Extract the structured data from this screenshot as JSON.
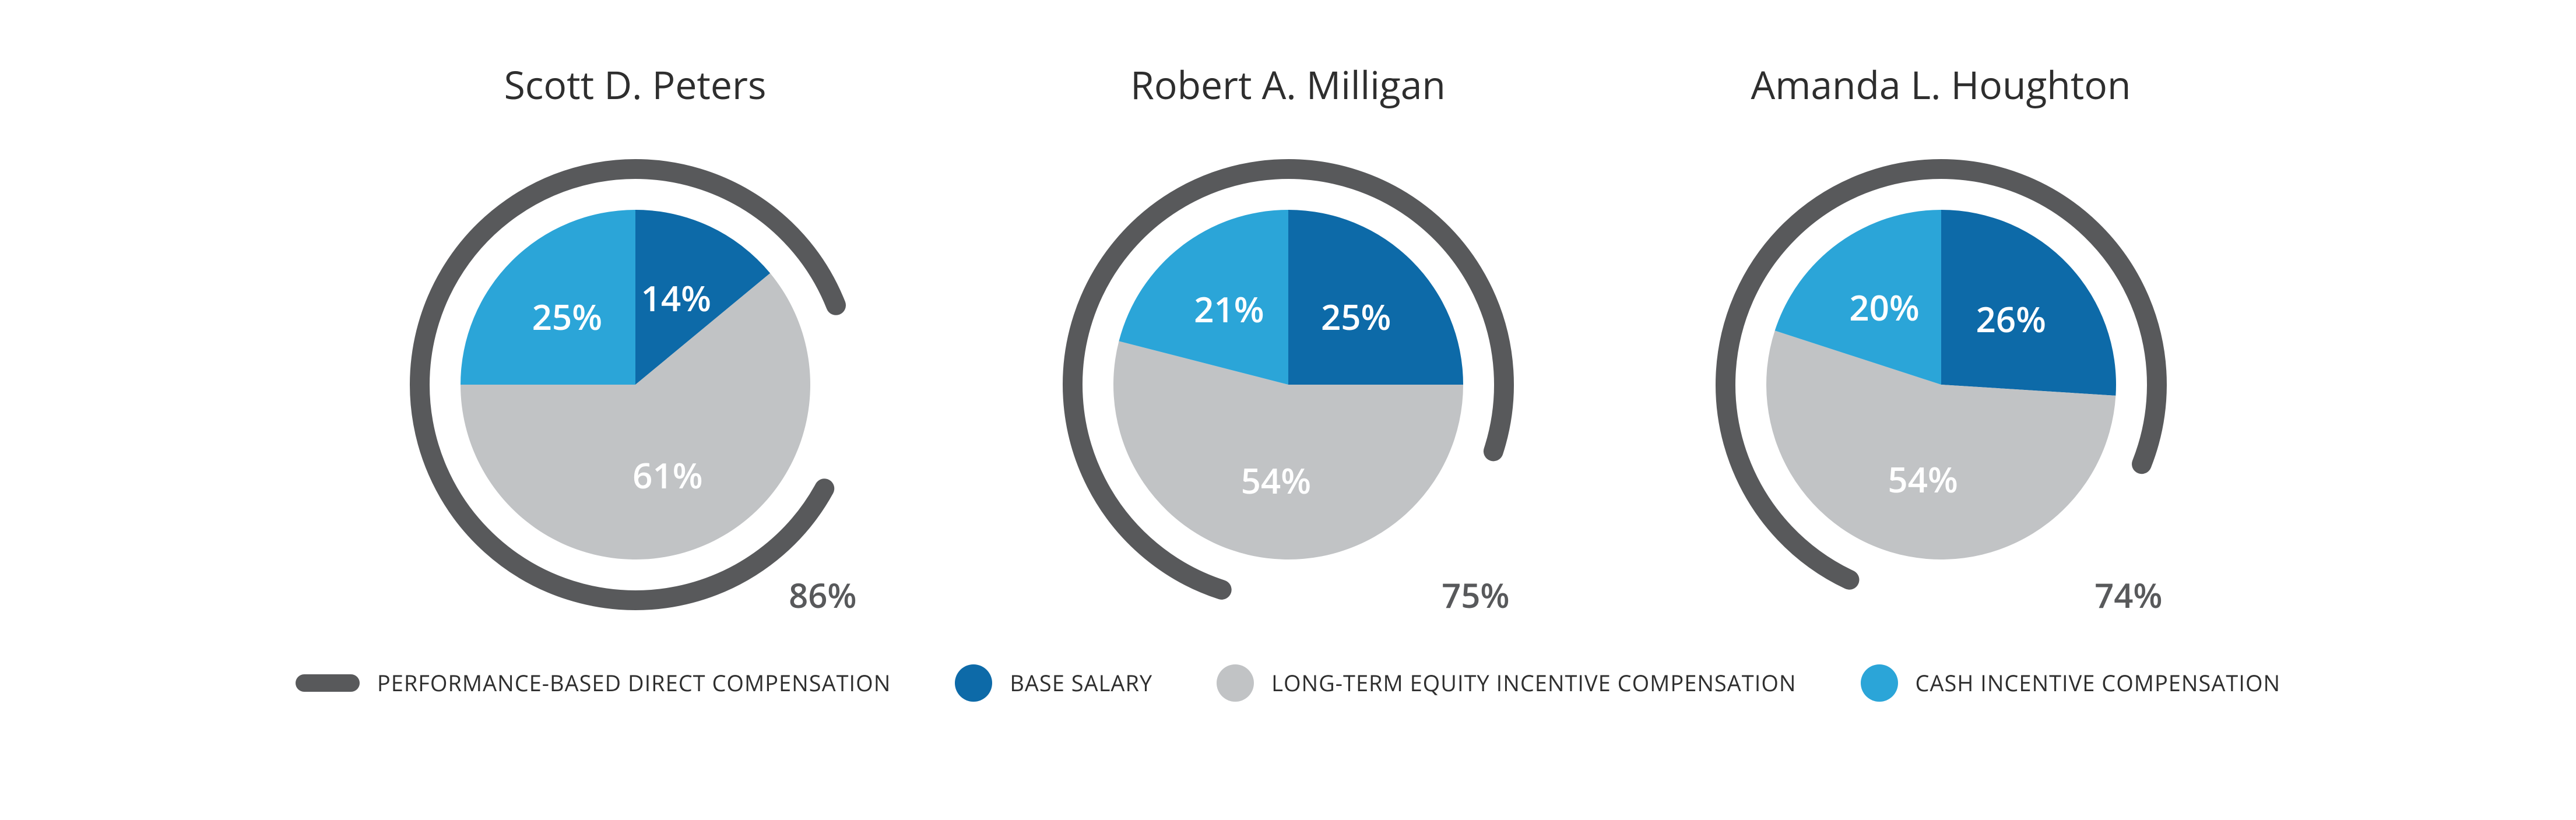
{
  "colors": {
    "ring": "#58595b",
    "base_salary": "#0d6aa8",
    "long_term_equity": "#c1c3c5",
    "cash_incentive": "#2ba5d8",
    "ring_pct_text": "#58595b",
    "title_text": "#2e2e2e",
    "background": "#ffffff"
  },
  "pie": {
    "outer_ring_radius": 370,
    "outer_ring_stroke": 34,
    "pie_radius": 300,
    "label_radius": 165,
    "gap_after_ring_deg": 18
  },
  "charts": [
    {
      "title": "Scott D. Peters",
      "ring_pct": 86,
      "slices": [
        {
          "key": "base_salary",
          "pct": 14
        },
        {
          "key": "long_term_equity",
          "pct": 61
        },
        {
          "key": "cash_incentive",
          "pct": 25
        }
      ]
    },
    {
      "title": "Robert A. Milligan",
      "ring_pct": 75,
      "slices": [
        {
          "key": "base_salary",
          "pct": 25
        },
        {
          "key": "long_term_equity",
          "pct": 54
        },
        {
          "key": "cash_incentive",
          "pct": 21
        }
      ]
    },
    {
      "title": "Amanda L. Houghton",
      "ring_pct": 74,
      "slices": [
        {
          "key": "base_salary",
          "pct": 26
        },
        {
          "key": "long_term_equity",
          "pct": 54
        },
        {
          "key": "cash_incentive",
          "pct": 20
        }
      ]
    }
  ],
  "legend": [
    {
      "shape": "line",
      "color_key": "ring",
      "label": "PERFORMANCE-BASED DIRECT COMPENSATION"
    },
    {
      "shape": "circle",
      "color_key": "base_salary",
      "label": "BASE SALARY"
    },
    {
      "shape": "circle",
      "color_key": "long_term_equity",
      "label": "LONG-TERM EQUITY INCENTIVE COMPENSATION"
    },
    {
      "shape": "circle",
      "color_key": "cash_incentive",
      "label": "CASH INCENTIVE COMPENSATION"
    }
  ]
}
